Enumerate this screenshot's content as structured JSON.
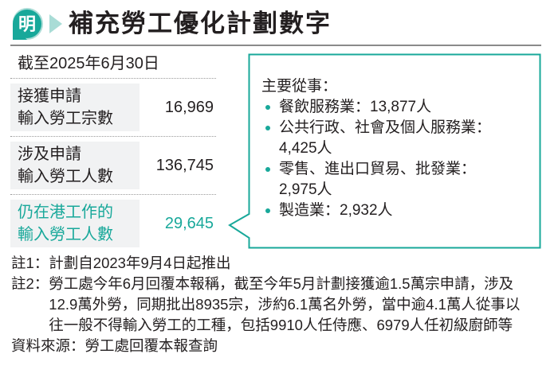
{
  "header": {
    "logo_text": "明",
    "title": "補充勞工優化計劃數字"
  },
  "as_of": "截至2025年6月30日",
  "rows": [
    {
      "label_line1": "接獲申請",
      "label_line2": "輸入勞工宗數",
      "value": "16,969",
      "highlight": false
    },
    {
      "label_line1": "涉及申請",
      "label_line2": "輸入勞工人數",
      "value": "136,745",
      "highlight": false
    },
    {
      "label_line1": "仍在港工作的",
      "label_line2": "輸入勞工人數",
      "value": "29,645",
      "highlight": true
    }
  ],
  "callout": {
    "heading": "主要從事：",
    "items": [
      {
        "line1": "餐飲服務業：13,877人",
        "line2": ""
      },
      {
        "line1": "公共行政、社會及個人服務業：",
        "line2": "4,425人"
      },
      {
        "line1": "零售、進出口貿易、批發業：",
        "line2": "2,975人"
      },
      {
        "line1": "製造業：2,932人",
        "line2": ""
      }
    ]
  },
  "notes": [
    {
      "key": "註1：",
      "text": "計劃自2023年9月4日起推出"
    },
    {
      "key": "註2：",
      "text": "勞工處今年6月回覆本報稱，截至今年5月計劃接獲逾1.5萬宗申請，涉及12.9萬外勞，同期批出8935宗，涉約6.1萬名外勞，當中逾4.1萬人從事以往一般不得輸入勞工的工種，包括9910人任侍應、6979人任初級廚師等"
    }
  ],
  "source": "資料來源：勞工處回覆本報查詢",
  "colors": {
    "accent": "#18a89a",
    "accent_light": "#a9dcd6",
    "cell_bg": "#f1f2f3"
  }
}
